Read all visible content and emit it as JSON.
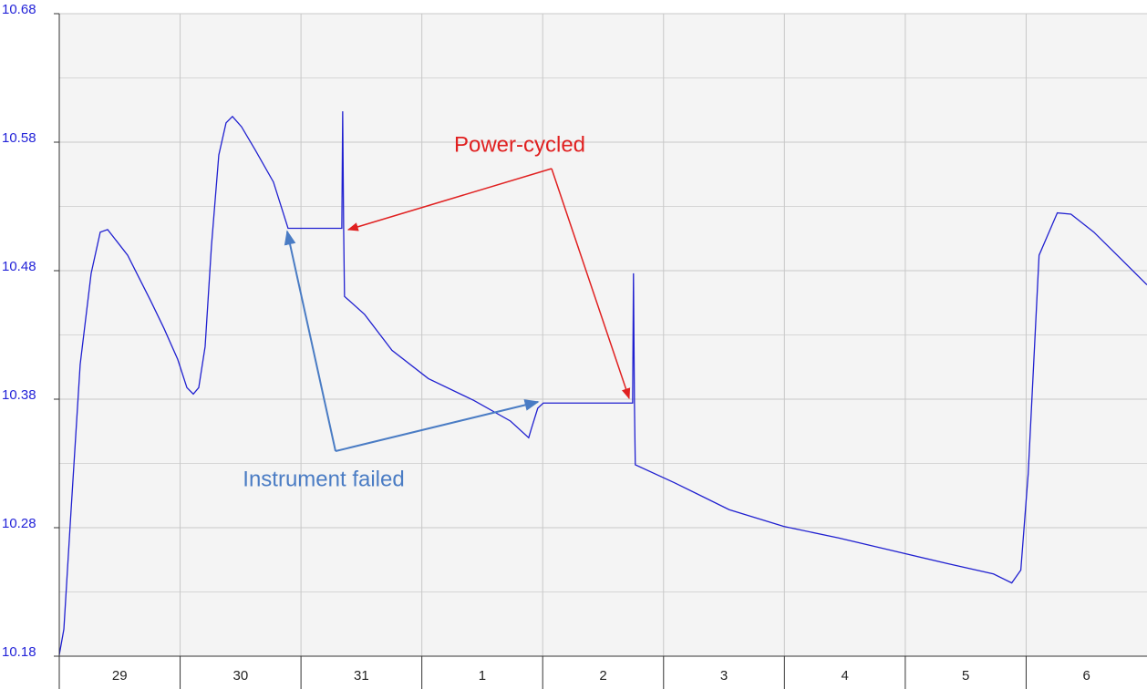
{
  "chart_data": {
    "type": "line",
    "categories": [
      "29",
      "30",
      "31",
      "1",
      "2",
      "3",
      "4",
      "5",
      "6"
    ],
    "xlim": [
      0,
      9
    ],
    "ylim": [
      10.18,
      10.68
    ],
    "yticks": [
      10.18,
      10.28,
      10.38,
      10.48,
      10.58,
      10.68
    ],
    "grid": true,
    "series": [
      {
        "color": "#2020d0",
        "x": [
          0,
          0.038,
          0.098,
          0.173,
          0.264,
          0.339,
          0.4,
          0.475,
          0.566,
          0.641,
          0.754,
          0.867,
          0.98,
          1.056,
          1.109,
          1.154,
          1.207,
          1.259,
          1.32,
          1.38,
          1.433,
          1.508,
          1.621,
          1.772,
          1.893,
          2.323,
          2.338,
          2.345,
          2.353,
          2.36,
          2.526,
          2.753,
          3.054,
          3.431,
          3.733,
          3.884,
          3.906,
          3.959,
          4.005,
          4.744,
          4.751,
          4.759,
          4.766,
          5.09,
          5.543,
          5.995,
          6.448,
          6.9,
          7.353,
          7.73,
          7.881,
          7.956,
          8.017,
          8.107,
          8.258,
          8.371,
          8.56,
          8.786,
          9.0
        ],
        "values": [
          10.181,
          10.201,
          10.294,
          10.407,
          10.478,
          10.51,
          10.512,
          10.503,
          10.492,
          10.478,
          10.457,
          10.435,
          10.411,
          10.389,
          10.384,
          10.389,
          10.421,
          10.499,
          10.57,
          10.595,
          10.6,
          10.592,
          10.574,
          10.549,
          10.513,
          10.513,
          10.513,
          10.604,
          10.513,
          10.46,
          10.446,
          10.418,
          10.396,
          10.379,
          10.363,
          10.35,
          10.357,
          10.373,
          10.377,
          10.377,
          10.478,
          10.377,
          10.329,
          10.315,
          10.294,
          10.281,
          10.272,
          10.262,
          10.252,
          10.244,
          10.237,
          10.247,
          10.322,
          10.492,
          10.525,
          10.524,
          10.51,
          10.489,
          10.469
        ]
      }
    ],
    "annotations": [
      "Power-cycled",
      "Instrument failed"
    ]
  }
}
